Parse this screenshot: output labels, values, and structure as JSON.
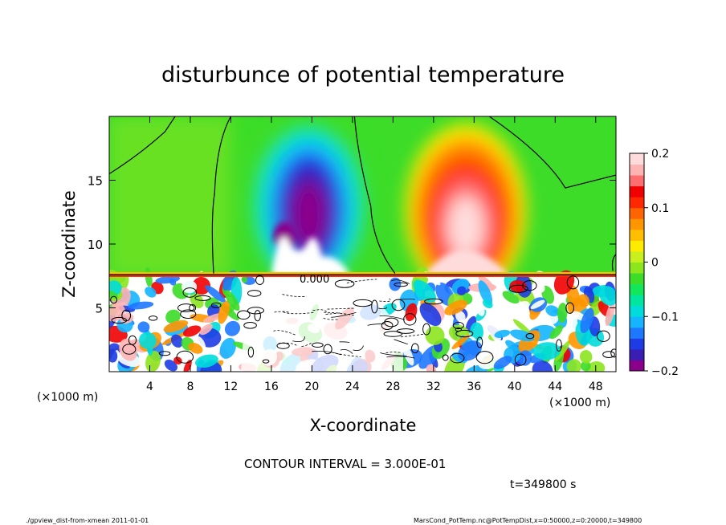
{
  "chart_data": {
    "type": "heatmap",
    "title": "disturbunce of potential temperature",
    "xlabel": "X-coordinate",
    "ylabel": "Z-coordinate",
    "x_unit_left": "(×1000 m)",
    "x_unit_right": "(×1000 m)",
    "xlim": [
      0,
      50
    ],
    "ylim": [
      0,
      20
    ],
    "x_ticks": [
      4,
      8,
      12,
      16,
      20,
      24,
      28,
      32,
      36,
      40,
      44,
      48
    ],
    "y_ticks": [
      5,
      10,
      15
    ],
    "colorbar": {
      "ticks": [
        0.2,
        0.1,
        0,
        -0.1,
        -0.2
      ],
      "range": [
        -0.2,
        0.2
      ],
      "colors": [
        "#8b008b",
        "#3a1eb4",
        "#1e3ce6",
        "#1e78ff",
        "#14b4ff",
        "#00dcdc",
        "#00e6a0",
        "#14e65a",
        "#3cdc28",
        "#8ce61e",
        "#c8f01e",
        "#ffeb00",
        "#ffbe00",
        "#ff9600",
        "#ff6400",
        "#ff2800",
        "#f00000",
        "#ff6e6e",
        "#ffb4b4",
        "#ffdcdc"
      ]
    },
    "anomalies": [
      {
        "x": 19.5,
        "z": 13.8,
        "value": -0.2
      },
      {
        "x": 35.0,
        "z": 11.5,
        "value": 0.2
      }
    ],
    "contour_label": "0.000"
  },
  "texts": {
    "contour_interval": "CONTOUR INTERVAL = 3.000E-01",
    "time": "t=349800 s",
    "footer_left": "./gpview_dist-from-xmean   2011-01-01",
    "footer_right": "MarsCond_PotTemp.nc@PotTempDist,x=0:50000,z=0:20000,t=349800"
  }
}
